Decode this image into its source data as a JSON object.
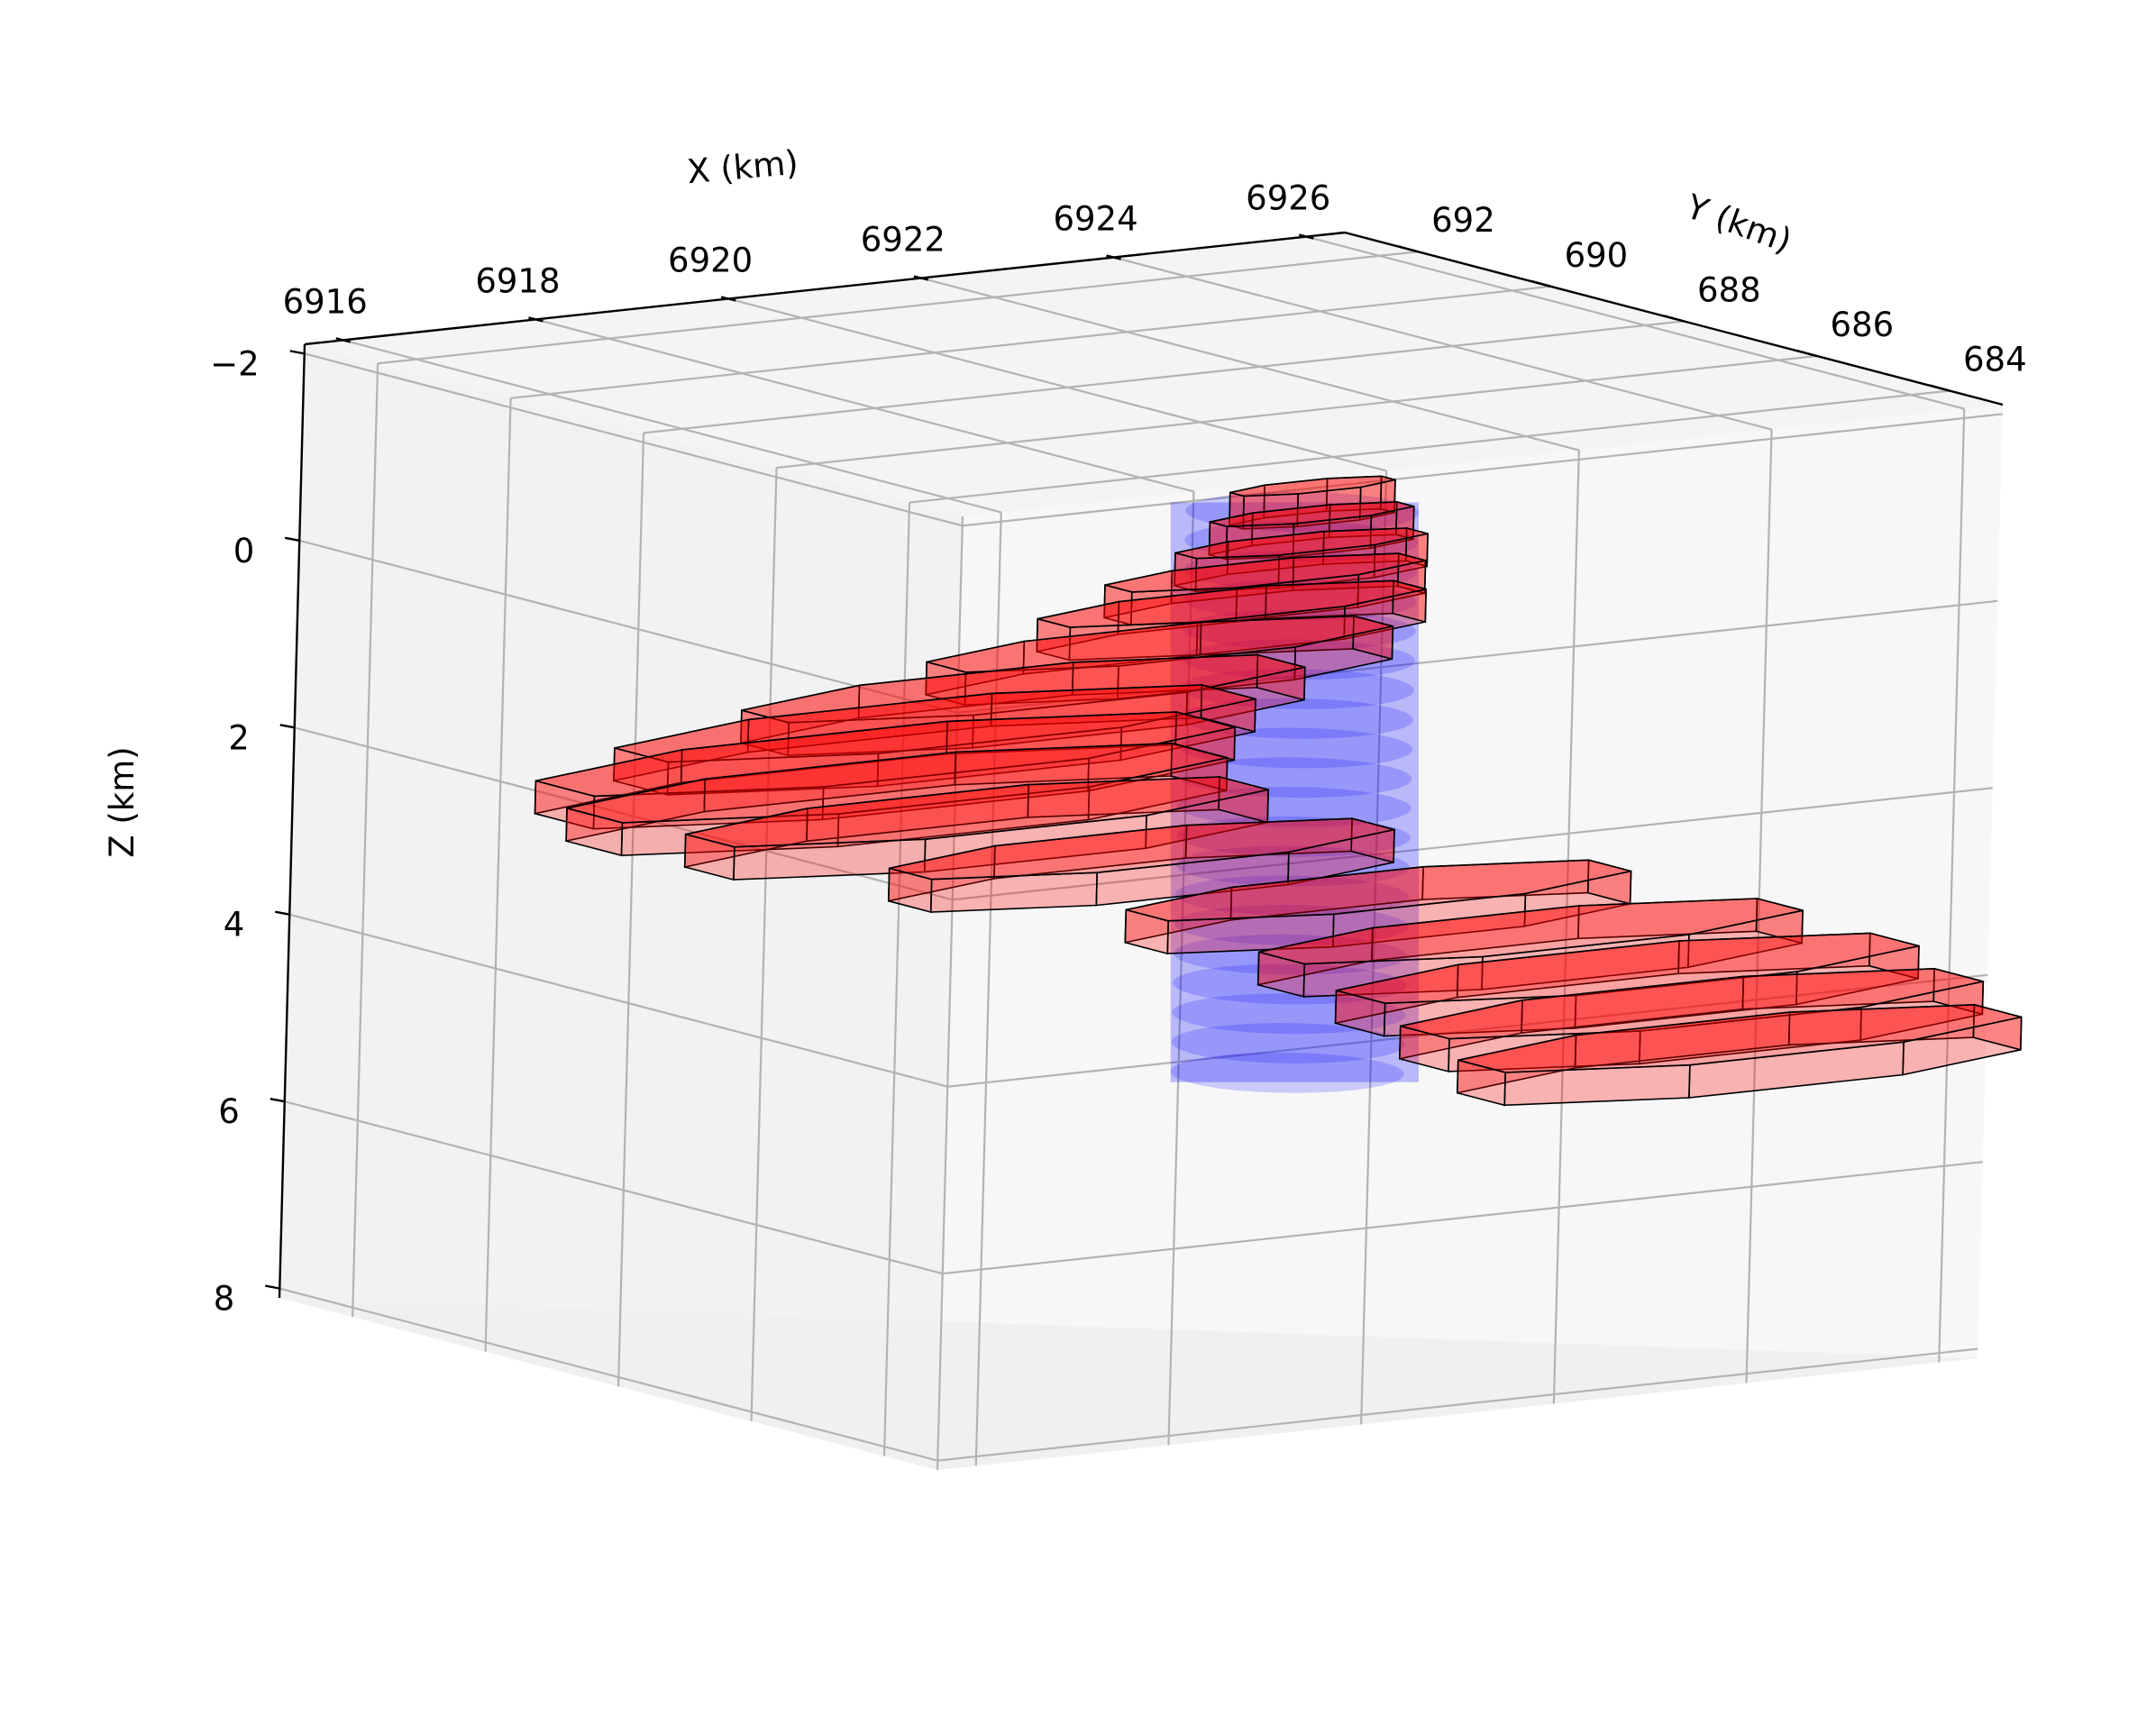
{
  "chart_data": {
    "type": "3d-polygons",
    "title": "",
    "xlabel": "X (km)",
    "ylabel": "Y (km)",
    "zlabel": "Z (km)",
    "x_ticks": [
      "6916",
      "6918",
      "6920",
      "6922",
      "6924",
      "6926"
    ],
    "y_ticks": [
      "692",
      "690",
      "688",
      "686",
      "684"
    ],
    "z_ticks": [
      "−2",
      "0",
      "2",
      "4",
      "6",
      "8"
    ],
    "xlim": [
      6915.6,
      6926.4
    ],
    "ylim": [
      693.1,
      683.2
    ],
    "zlim": [
      -2.1,
      8.1
    ],
    "z_inverted": true,
    "grid": true,
    "series": [
      {
        "kind": "cylinder",
        "color": "#0000ff",
        "center_x": 6922.2,
        "center_y": 687.6,
        "radius": 1.0,
        "z_top": -0.6,
        "z_bottom": 5.4,
        "layers": 20
      },
      {
        "kind": "stacked-slabs",
        "color": "#ff0000",
        "edge_color": "#000000",
        "slabs": [
          {
            "z_top": -0.6,
            "z_bottom": -0.25,
            "center_x": 6923.0,
            "center_y": 688.6,
            "half_width": 0.85
          },
          {
            "z_top": -0.3,
            "z_bottom": 0.05,
            "center_x": 6923.0,
            "center_y": 688.6,
            "half_width": 1.05
          },
          {
            "z_top": 0.0,
            "z_bottom": 0.35,
            "center_x": 6922.9,
            "center_y": 688.6,
            "half_width": 1.3
          },
          {
            "z_top": 0.3,
            "z_bottom": 0.65,
            "center_x": 6922.6,
            "center_y": 688.7,
            "half_width": 1.65
          },
          {
            "z_top": 0.65,
            "z_bottom": 1.0,
            "center_x": 6922.4,
            "center_y": 688.9,
            "half_width": 2.0
          },
          {
            "z_top": 1.05,
            "z_bottom": 1.4,
            "center_x": 6921.8,
            "center_y": 689.1,
            "half_width": 2.4
          },
          {
            "z_top": 1.45,
            "z_bottom": 1.8,
            "center_x": 6920.6,
            "center_y": 689.4,
            "half_width": 2.9
          },
          {
            "z_top": 1.8,
            "z_bottom": 2.15,
            "center_x": 6919.9,
            "center_y": 689.7,
            "half_width": 3.3
          },
          {
            "z_top": 2.15,
            "z_bottom": 2.5,
            "center_x": 6919.6,
            "center_y": 690.0,
            "half_width": 3.6
          },
          {
            "z_top": 2.5,
            "z_bottom": 2.85,
            "center_x": 6919.8,
            "center_y": 690.1,
            "half_width": 3.4
          },
          {
            "z_top": 2.85,
            "z_bottom": 3.2,
            "center_x": 6920.5,
            "center_y": 689.9,
            "half_width": 3.0
          },
          {
            "z_top": 3.2,
            "z_bottom": 3.55,
            "center_x": 6921.6,
            "center_y": 689.0,
            "half_width": 2.6
          },
          {
            "z_top": 3.55,
            "z_bottom": 3.9,
            "center_x": 6923.1,
            "center_y": 687.6,
            "half_width": 2.6
          },
          {
            "z_top": 3.9,
            "z_bottom": 4.25,
            "center_x": 6924.0,
            "center_y": 686.6,
            "half_width": 2.8
          },
          {
            "z_top": 4.25,
            "z_bottom": 4.6,
            "center_x": 6924.6,
            "center_y": 686.0,
            "half_width": 3.0
          },
          {
            "z_top": 4.6,
            "z_bottom": 4.95,
            "center_x": 6925.0,
            "center_y": 685.6,
            "half_width": 3.0
          },
          {
            "z_top": 4.95,
            "z_bottom": 5.3,
            "center_x": 6925.3,
            "center_y": 685.3,
            "half_width": 2.9
          }
        ]
      }
    ]
  }
}
